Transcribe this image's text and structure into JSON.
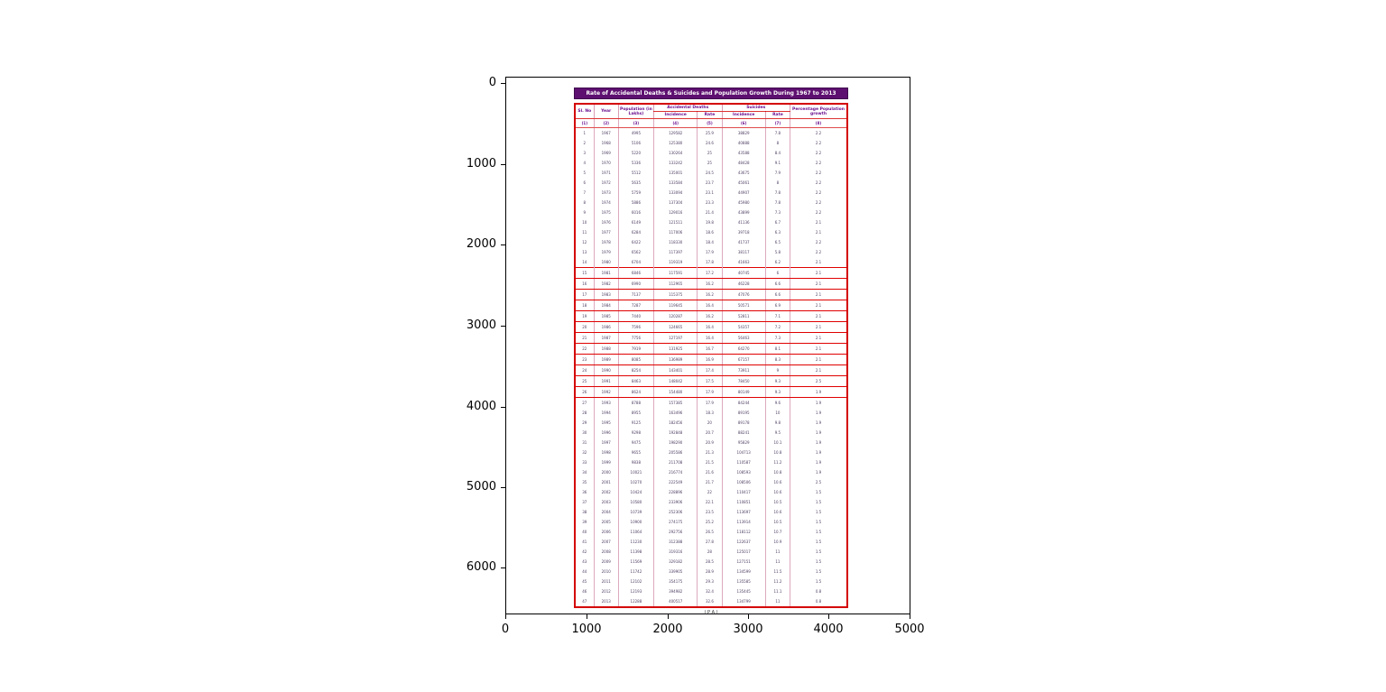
{
  "figure": {
    "background": "#ffffff",
    "y_ticks": [
      "0",
      "1000",
      "2000",
      "3000",
      "4000",
      "5000",
      "6000"
    ],
    "x_ticks": [
      "0",
      "1000",
      "2000",
      "3000",
      "4000",
      "5000"
    ]
  },
  "table_image": {
    "title": "Rate of Accidental Deaths & Suicides and Population Growth During 1967 to 2013",
    "title_bg_color": "#5e1070",
    "border_color": "#d40000",
    "header_text_color": "#6a0f8e",
    "headers": {
      "sl_no": "Sl. No",
      "year": "Year",
      "population": "Population (in Lakhs)",
      "accidental_deaths": "Accidental Deaths",
      "suicides": "Suicides",
      "incidence": "Incidence",
      "rate": "Rate",
      "growth": "Percentage Population growth"
    },
    "col_numbers": [
      "(1)",
      "(2)",
      "(3)",
      "(4)",
      "(5)",
      "(6)",
      "(7)",
      "(8)"
    ],
    "highlight_rows": [
      15,
      16,
      17,
      18,
      19,
      20,
      21,
      22,
      23,
      24,
      25,
      26
    ],
    "footer": "( P A )"
  },
  "chart_data": {
    "type": "table",
    "title": "Rate of Accidental Deaths & Suicides and Population Growth During 1967 to 2013",
    "columns": [
      "Sl. No",
      "Year",
      "Population (in Lakhs)",
      "Accidental Deaths - Incidence",
      "Accidental Deaths - Rate",
      "Suicides - Incidence",
      "Suicides - Rate",
      "Percentage Population growth"
    ],
    "rows": [
      [
        1,
        1967,
        4995,
        129582,
        25.9,
        38829,
        7.8,
        2.2
      ],
      [
        2,
        1968,
        5106,
        125380,
        24.6,
        40888,
        8.0,
        2.2
      ],
      [
        3,
        1969,
        5220,
        130264,
        25.0,
        43588,
        8.4,
        2.2
      ],
      [
        4,
        1970,
        5336,
        133242,
        25.0,
        48428,
        9.1,
        2.2
      ],
      [
        5,
        1971,
        5512,
        135001,
        24.5,
        43675,
        7.9,
        2.2
      ],
      [
        6,
        1972,
        5635,
        133584,
        23.7,
        45061,
        8.0,
        2.2
      ],
      [
        7,
        1973,
        5759,
        133094,
        23.1,
        44907,
        7.8,
        2.2
      ],
      [
        8,
        1974,
        5886,
        137304,
        23.3,
        45980,
        7.8,
        2.2
      ],
      [
        9,
        1975,
        6016,
        129016,
        21.4,
        43899,
        7.3,
        2.2
      ],
      [
        10,
        1976,
        6149,
        121511,
        19.8,
        41136,
        6.7,
        2.1
      ],
      [
        11,
        1977,
        6284,
        117006,
        18.6,
        39718,
        6.3,
        2.1
      ],
      [
        12,
        1978,
        6422,
        118330,
        18.4,
        41737,
        6.5,
        2.2
      ],
      [
        13,
        1979,
        6562,
        117397,
        17.9,
        38117,
        5.8,
        2.2
      ],
      [
        14,
        1980,
        6704,
        119319,
        17.8,
        41663,
        6.2,
        2.1
      ],
      [
        15,
        1981,
        6846,
        117591,
        17.2,
        40745,
        6.0,
        2.1
      ],
      [
        16,
        1982,
        6990,
        112965,
        16.2,
        46228,
        6.6,
        2.1
      ],
      [
        17,
        1983,
        7137,
        115375,
        16.2,
        47076,
        6.6,
        2.1
      ],
      [
        18,
        1984,
        7287,
        119645,
        16.4,
        50571,
        6.9,
        2.1
      ],
      [
        19,
        1985,
        7440,
        120287,
        16.2,
        52811,
        7.1,
        2.1
      ],
      [
        20,
        1986,
        7596,
        124665,
        16.4,
        54357,
        7.2,
        2.1
      ],
      [
        21,
        1987,
        7756,
        127197,
        16.4,
        56463,
        7.3,
        2.1
      ],
      [
        22,
        1988,
        7919,
        131925,
        16.7,
        64270,
        8.1,
        2.1
      ],
      [
        23,
        1989,
        8085,
        136989,
        16.9,
        67157,
        8.3,
        2.1
      ],
      [
        24,
        1990,
        8254,
        143401,
        17.4,
        73911,
        9.0,
        2.1
      ],
      [
        25,
        1991,
        8463,
        148042,
        17.5,
        78450,
        9.3,
        2.5
      ],
      [
        26,
        1992,
        8624,
        154480,
        17.9,
        80149,
        9.3,
        1.9
      ],
      [
        27,
        1993,
        8788,
        157385,
        17.9,
        84244,
        9.6,
        1.9
      ],
      [
        28,
        1994,
        8955,
        163496,
        18.3,
        89195,
        10.0,
        1.9
      ],
      [
        29,
        1995,
        9125,
        182456,
        20.0,
        89178,
        9.8,
        1.9
      ],
      [
        30,
        1996,
        9298,
        192848,
        20.7,
        88241,
        9.5,
        1.9
      ],
      [
        31,
        1997,
        9475,
        198290,
        20.9,
        95829,
        10.1,
        1.9
      ],
      [
        32,
        1998,
        9655,
        205586,
        21.3,
        104713,
        10.8,
        1.9
      ],
      [
        33,
        1999,
        9838,
        211708,
        21.5,
        110587,
        11.2,
        1.9
      ],
      [
        34,
        2000,
        10021,
        216774,
        21.6,
        108593,
        10.8,
        1.9
      ],
      [
        35,
        2001,
        10270,
        222549,
        21.7,
        108506,
        10.6,
        2.5
      ],
      [
        36,
        2002,
        10424,
        228896,
        22.0,
        110417,
        10.6,
        1.5
      ],
      [
        37,
        2003,
        10580,
        233906,
        22.1,
        110851,
        10.5,
        1.5
      ],
      [
        38,
        2004,
        10739,
        252306,
        23.5,
        113697,
        10.6,
        1.5
      ],
      [
        39,
        2005,
        10900,
        274175,
        25.2,
        113914,
        10.5,
        1.5
      ],
      [
        40,
        2006,
        11064,
        292756,
        26.5,
        118112,
        10.7,
        1.5
      ],
      [
        41,
        2007,
        11230,
        312388,
        27.8,
        122637,
        10.9,
        1.5
      ],
      [
        42,
        2008,
        11398,
        319316,
        28.0,
        125017,
        11.0,
        1.5
      ],
      [
        43,
        2009,
        11569,
        329182,
        28.5,
        127151,
        11.0,
        1.5
      ],
      [
        44,
        2010,
        11742,
        339905,
        28.9,
        134599,
        11.5,
        1.5
      ],
      [
        45,
        2011,
        12102,
        354175,
        29.3,
        135585,
        11.2,
        1.5
      ],
      [
        46,
        2012,
        12193,
        394982,
        32.4,
        135445,
        11.1,
        0.8
      ],
      [
        47,
        2013,
        12288,
        400517,
        32.6,
        134799,
        11.0,
        0.8
      ]
    ],
    "layout": {
      "x_axis_ticks": [
        0,
        1000,
        2000,
        3000,
        4000,
        5000
      ],
      "y_axis_ticks": [
        0,
        1000,
        2000,
        3000,
        4000,
        5000,
        6000
      ],
      "y_axis_inverted": true,
      "grid": false,
      "legend": "none",
      "note": "table rendered as an image inside a plot with pixel-coordinate axes"
    }
  }
}
